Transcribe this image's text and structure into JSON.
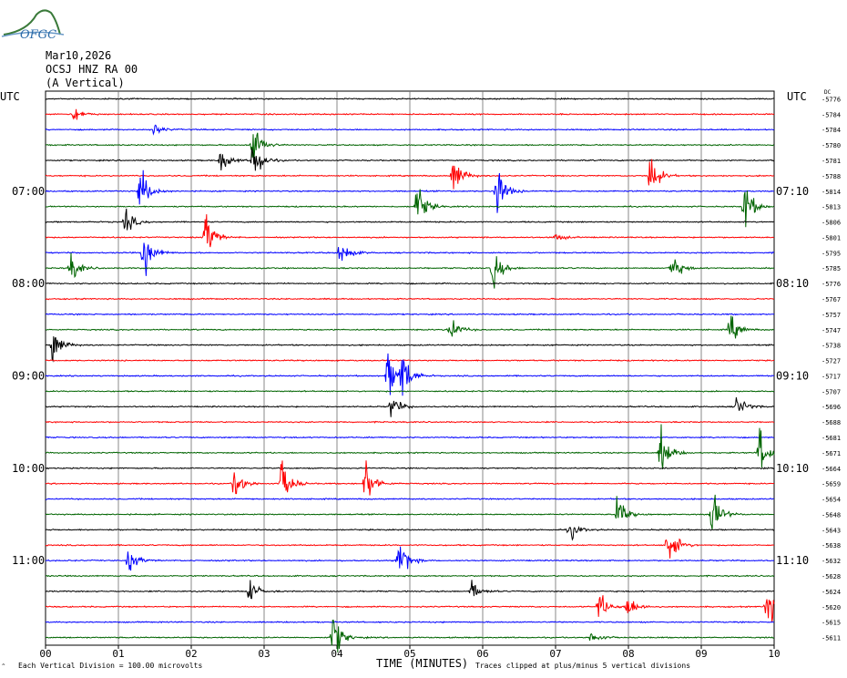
{
  "header": {
    "date": "Mar10,2026",
    "station": "OCSJ HNZ RA 00",
    "component": "(A Vertical)"
  },
  "logo": {
    "text": "OFGC",
    "color": "#3a7a3a"
  },
  "labels": {
    "utc_left": "UTC",
    "utc_right": "UTC",
    "dc": "DC",
    "time_axis": "TIME (MINUTES)",
    "vertical_division": "Each Vertical Division =  100.00 microvolts",
    "clipped_note": "Traces clipped at plus/minus 5 vertical divisions",
    "corner_mark": "^"
  },
  "time_labels_left": [
    "07:00",
    "08:00",
    "09:00",
    "10:00",
    "11:00"
  ],
  "time_labels_right": [
    "07:10",
    "08:10",
    "09:10",
    "10:10",
    "11:10"
  ],
  "chart_data": {
    "type": "line",
    "description_units": "helicorder traces; x in minutes (0-10), each row = 10-minute trace",
    "x_ticks": [
      "00",
      "01",
      "02",
      "03",
      "04",
      "05",
      "06",
      "07",
      "08",
      "09",
      "10"
    ],
    "xlim": [
      0,
      10
    ],
    "trace_colors": [
      "#000000",
      "#ff0000",
      "#0000ff",
      "#006400"
    ],
    "dc_offsets": [
      -5776,
      -5784,
      -5784,
      -5780,
      -5781,
      -5788,
      -5814,
      -5813,
      -5806,
      -5801,
      -5795,
      -5785,
      -5776,
      -5767,
      -5757,
      -5747,
      -5738,
      -5727,
      -5717,
      -5707,
      -5696,
      -5688,
      -5681,
      -5671,
      -5664,
      -5659,
      -5654,
      -5648,
      -5643,
      -5638,
      -5632,
      -5628,
      -5624,
      -5620,
      -5615,
      -5611
    ],
    "events": [
      {
        "row": 1,
        "minute": 0.4,
        "amplitude": 0.3
      },
      {
        "row": 2,
        "minute": 1.5,
        "amplitude": 0.2
      },
      {
        "row": 3,
        "minute": 2.85,
        "amplitude": 1.0
      },
      {
        "row": 4,
        "minute": 2.4,
        "amplitude": 0.6
      },
      {
        "row": 4,
        "minute": 2.85,
        "amplitude": 1.0
      },
      {
        "row": 5,
        "minute": 5.6,
        "amplitude": 0.9
      },
      {
        "row": 5,
        "minute": 8.3,
        "amplitude": 1.0
      },
      {
        "row": 6,
        "minute": 1.3,
        "amplitude": 1.0
      },
      {
        "row": 6,
        "minute": 6.2,
        "amplitude": 1.0
      },
      {
        "row": 7,
        "minute": 5.1,
        "amplitude": 1.0
      },
      {
        "row": 7,
        "minute": 9.6,
        "amplitude": 1.0
      },
      {
        "row": 8,
        "minute": 1.1,
        "amplitude": 0.5
      },
      {
        "row": 9,
        "minute": 2.2,
        "amplitude": 1.0
      },
      {
        "row": 9,
        "minute": 7.0,
        "amplitude": 0.2
      },
      {
        "row": 10,
        "minute": 1.35,
        "amplitude": 1.0
      },
      {
        "row": 10,
        "minute": 4.05,
        "amplitude": 0.6
      },
      {
        "row": 11,
        "minute": 0.35,
        "amplitude": 0.6
      },
      {
        "row": 11,
        "minute": 6.15,
        "amplitude": 0.8
      },
      {
        "row": 11,
        "minute": 8.6,
        "amplitude": 0.6
      },
      {
        "row": 15,
        "minute": 5.55,
        "amplitude": 0.6
      },
      {
        "row": 15,
        "minute": 9.4,
        "amplitude": 0.6
      },
      {
        "row": 16,
        "minute": 0.1,
        "amplitude": 0.8
      },
      {
        "row": 18,
        "minute": 4.7,
        "amplitude": 1.0
      },
      {
        "row": 18,
        "minute": 4.9,
        "amplitude": 1.0
      },
      {
        "row": 20,
        "minute": 4.75,
        "amplitude": 0.5
      },
      {
        "row": 20,
        "minute": 9.5,
        "amplitude": 0.5
      },
      {
        "row": 23,
        "minute": 8.45,
        "amplitude": 1.0
      },
      {
        "row": 23,
        "minute": 9.8,
        "amplitude": 1.0
      },
      {
        "row": 25,
        "minute": 2.6,
        "amplitude": 0.7
      },
      {
        "row": 25,
        "minute": 3.25,
        "amplitude": 1.0
      },
      {
        "row": 25,
        "minute": 4.4,
        "amplitude": 1.0
      },
      {
        "row": 27,
        "minute": 7.85,
        "amplitude": 0.7
      },
      {
        "row": 27,
        "minute": 9.15,
        "amplitude": 1.0
      },
      {
        "row": 28,
        "minute": 7.2,
        "amplitude": 0.4
      },
      {
        "row": 29,
        "minute": 8.55,
        "amplitude": 1.0
      },
      {
        "row": 30,
        "minute": 1.15,
        "amplitude": 0.5
      },
      {
        "row": 30,
        "minute": 4.85,
        "amplitude": 1.0
      },
      {
        "row": 32,
        "minute": 2.8,
        "amplitude": 0.5
      },
      {
        "row": 32,
        "minute": 5.85,
        "amplitude": 0.4
      },
      {
        "row": 33,
        "minute": 7.6,
        "amplitude": 0.6
      },
      {
        "row": 33,
        "minute": 8.0,
        "amplitude": 0.6
      },
      {
        "row": 33,
        "minute": 9.9,
        "amplitude": 1.0
      },
      {
        "row": 35,
        "minute": 3.95,
        "amplitude": 1.0
      },
      {
        "row": 35,
        "minute": 7.5,
        "amplitude": 0.3
      }
    ]
  }
}
